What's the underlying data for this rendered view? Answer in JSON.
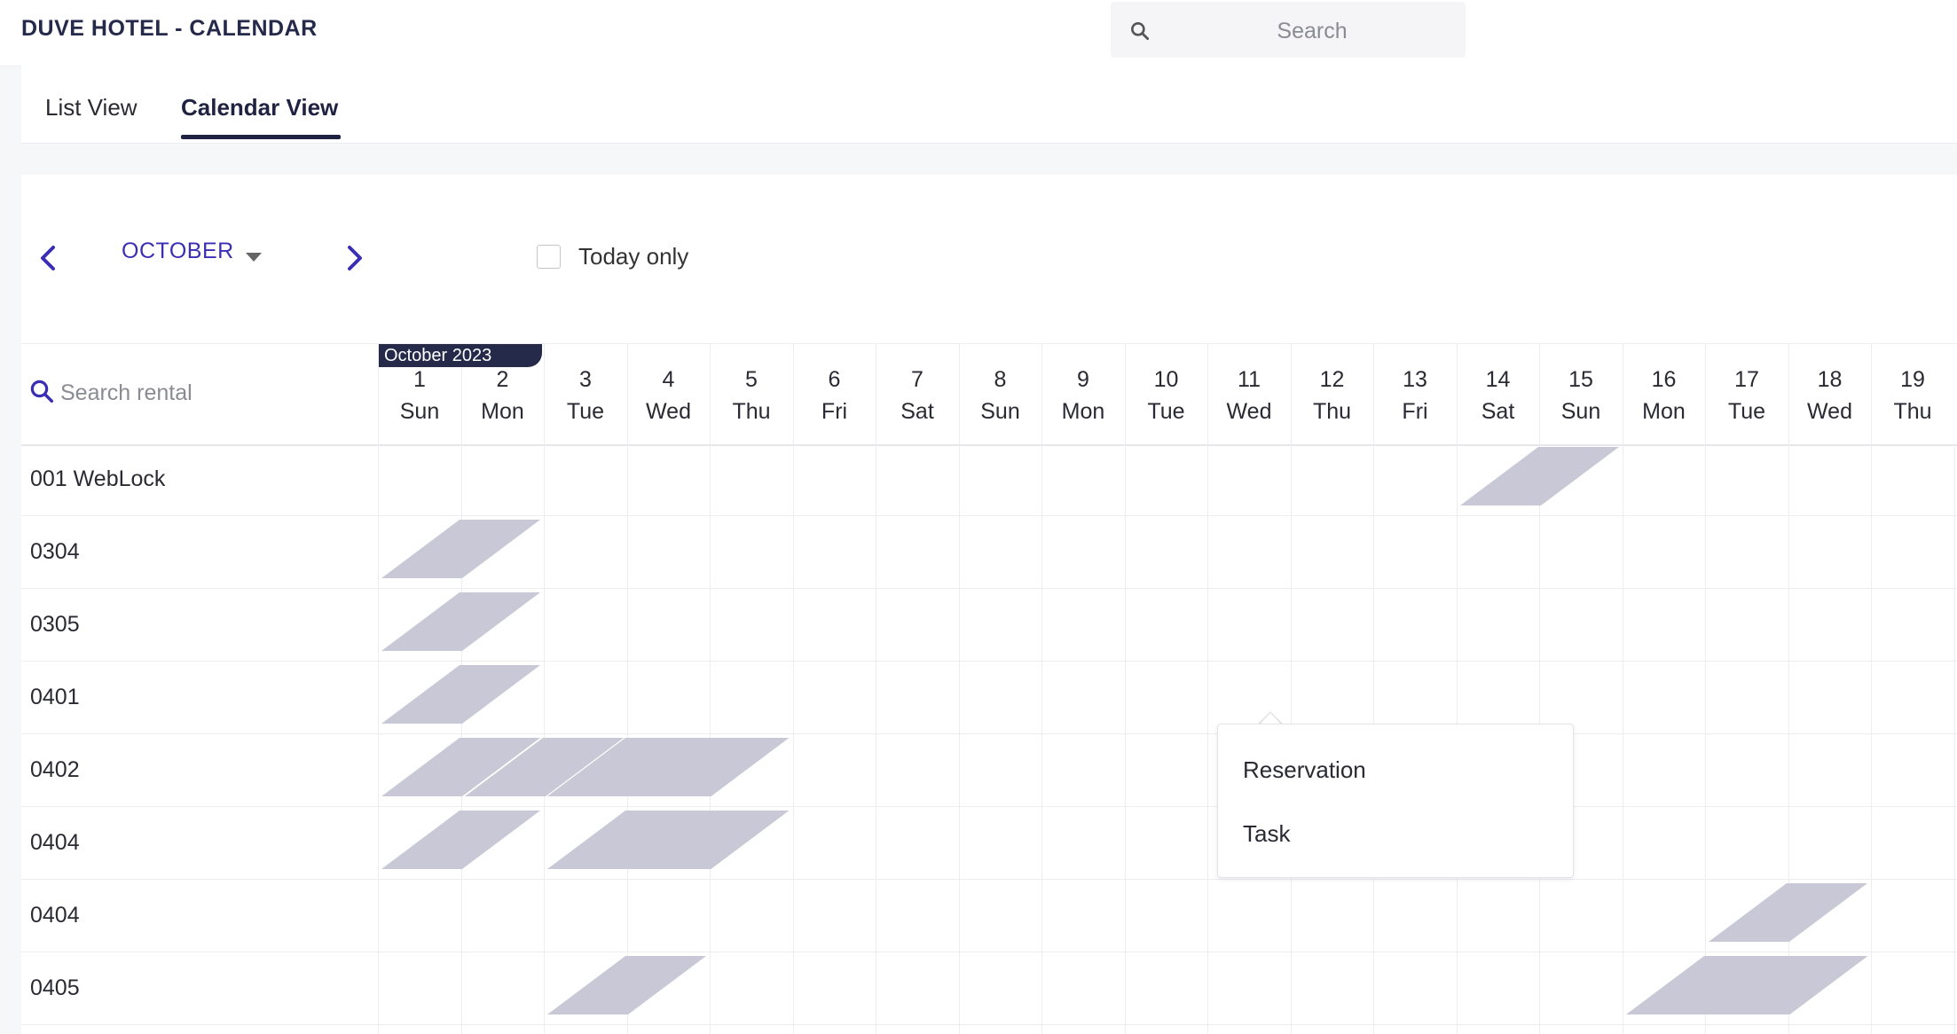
{
  "app": {
    "title": "DUVE HOTEL - CALENDAR"
  },
  "search": {
    "placeholder": "Search",
    "icon": "search-icon"
  },
  "tabs": [
    {
      "label": "List View",
      "active": false
    },
    {
      "label": "Calendar View",
      "active": true
    }
  ],
  "calendar": {
    "month": "OCTOBER",
    "today_only_label": "Today only",
    "today_only_checked": false,
    "month_tag": "October 2023",
    "rental_search_placeholder": "Search rental",
    "days": [
      {
        "num": "1",
        "wd": "Sun"
      },
      {
        "num": "2",
        "wd": "Mon"
      },
      {
        "num": "3",
        "wd": "Tue"
      },
      {
        "num": "4",
        "wd": "Wed"
      },
      {
        "num": "5",
        "wd": "Thu"
      },
      {
        "num": "6",
        "wd": "Fri"
      },
      {
        "num": "7",
        "wd": "Sat"
      },
      {
        "num": "8",
        "wd": "Sun"
      },
      {
        "num": "9",
        "wd": "Mon"
      },
      {
        "num": "10",
        "wd": "Tue"
      },
      {
        "num": "11",
        "wd": "Wed"
      },
      {
        "num": "12",
        "wd": "Thu"
      },
      {
        "num": "13",
        "wd": "Fri"
      },
      {
        "num": "14",
        "wd": "Sat"
      },
      {
        "num": "15",
        "wd": "Sun"
      },
      {
        "num": "16",
        "wd": "Mon"
      },
      {
        "num": "17",
        "wd": "Tue"
      },
      {
        "num": "18",
        "wd": "Wed"
      },
      {
        "num": "19",
        "wd": "Thu"
      }
    ],
    "rentals": [
      {
        "name": "001 WebLock"
      },
      {
        "name": "0304"
      },
      {
        "name": "0305"
      },
      {
        "name": "0401"
      },
      {
        "name": "0402"
      },
      {
        "name": "0404"
      },
      {
        "name": "0404"
      },
      {
        "name": "0405"
      }
    ],
    "booking_color": "#c9c8d6",
    "bookings": [
      {
        "row": 0,
        "from_day": 14,
        "to_day": 16
      },
      {
        "row": 1,
        "from_day": 1,
        "to_day": 3
      },
      {
        "row": 2,
        "from_day": 1,
        "to_day": 3
      },
      {
        "row": 3,
        "from_day": 1,
        "to_day": 3
      },
      {
        "row": 4,
        "from_day": 1,
        "to_day": 3
      },
      {
        "row": 4,
        "from_day": 2,
        "to_day": 4
      },
      {
        "row": 4,
        "from_day": 3,
        "to_day": 6
      },
      {
        "row": 5,
        "from_day": 1,
        "to_day": 3
      },
      {
        "row": 5,
        "from_day": 3,
        "to_day": 6
      },
      {
        "row": 6,
        "from_day": 17,
        "to_day": 19
      },
      {
        "row": 7,
        "from_day": 3,
        "to_day": 5
      },
      {
        "row": 7,
        "from_day": 16,
        "to_day": 19
      }
    ]
  },
  "context_menu": {
    "items": [
      {
        "label": "Reservation"
      },
      {
        "label": "Task"
      }
    ]
  }
}
